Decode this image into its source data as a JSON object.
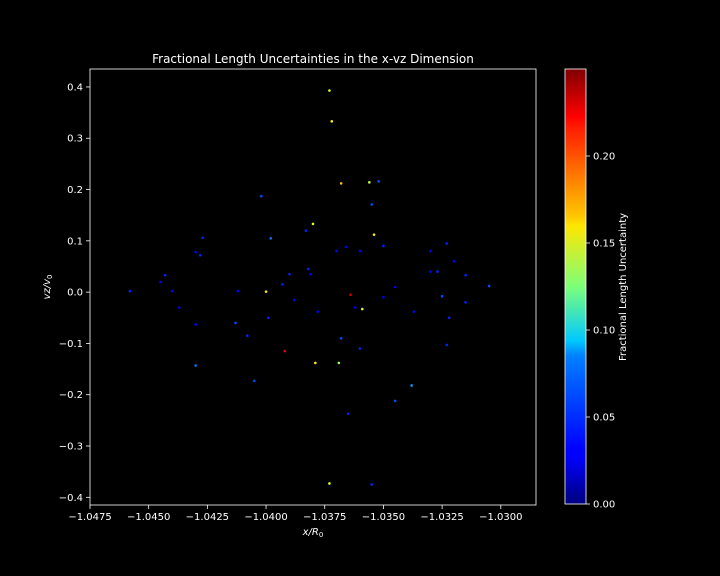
{
  "chart_data": {
    "type": "scatter",
    "title": "Fractional Length Uncertainties in the x-vz Dimension",
    "xlabel_main": "x/R",
    "xlabel_sub": "0",
    "ylabel_main": "vz/v",
    "ylabel_sub": "0",
    "xlim": [
      -1.0475,
      -1.0285
    ],
    "ylim": [
      -0.415,
      0.435
    ],
    "xticks": [
      -1.0475,
      -1.045,
      -1.0425,
      -1.04,
      -1.0375,
      -1.035,
      -1.0325,
      -1.03
    ],
    "xtick_labels": [
      "−1.0475",
      "−1.0450",
      "−1.0425",
      "−1.0400",
      "−1.0375",
      "−1.0350",
      "−1.0325",
      "−1.0300"
    ],
    "yticks": [
      0.4,
      0.3,
      0.2,
      0.1,
      0.0,
      -0.1,
      -0.2,
      -0.3,
      -0.4
    ],
    "ytick_labels": [
      "0.4",
      "0.3",
      "0.2",
      "0.1",
      "0.0",
      "−0.1",
      "−0.2",
      "−0.3",
      "−0.4"
    ],
    "grid": false,
    "background": "#000000",
    "colorbar": {
      "label": "Fractional Length Uncertainty",
      "colormap": "jet",
      "min": 0.0,
      "max": 0.25,
      "ticks": [
        0.0,
        0.05,
        0.1,
        0.15,
        0.2
      ],
      "tick_labels": [
        "0.00",
        "0.05",
        "0.10",
        "0.15",
        "0.20"
      ]
    },
    "points": [
      {
        "x": -1.0373,
        "y": 0.393,
        "c": 0.15
      },
      {
        "x": -1.0372,
        "y": 0.333,
        "c": 0.16
      },
      {
        "x": -1.0368,
        "y": 0.212,
        "c": 0.17
      },
      {
        "x": -1.0356,
        "y": 0.214,
        "c": 0.14
      },
      {
        "x": -1.0352,
        "y": 0.216,
        "c": 0.05
      },
      {
        "x": -1.0355,
        "y": 0.171,
        "c": 0.05
      },
      {
        "x": -1.038,
        "y": 0.133,
        "c": 0.15
      },
      {
        "x": -1.0354,
        "y": 0.112,
        "c": 0.16
      },
      {
        "x": -1.0402,
        "y": 0.187,
        "c": 0.05
      },
      {
        "x": -1.0398,
        "y": 0.105,
        "c": 0.06
      },
      {
        "x": -1.0383,
        "y": 0.12,
        "c": 0.04
      },
      {
        "x": -1.0427,
        "y": 0.106,
        "c": 0.04
      },
      {
        "x": -1.043,
        "y": 0.078,
        "c": 0.03
      },
      {
        "x": -1.0428,
        "y": 0.072,
        "c": 0.04
      },
      {
        "x": -1.0366,
        "y": 0.088,
        "c": 0.03
      },
      {
        "x": -1.036,
        "y": 0.08,
        "c": 0.03
      },
      {
        "x": -1.035,
        "y": 0.09,
        "c": 0.04
      },
      {
        "x": -1.037,
        "y": 0.08,
        "c": 0.03
      },
      {
        "x": -1.033,
        "y": 0.08,
        "c": 0.03
      },
      {
        "x": -1.0323,
        "y": 0.095,
        "c": 0.04
      },
      {
        "x": -1.032,
        "y": 0.06,
        "c": 0.03
      },
      {
        "x": -1.033,
        "y": 0.04,
        "c": 0.03
      },
      {
        "x": -1.0327,
        "y": 0.04,
        "c": 0.04
      },
      {
        "x": -1.0315,
        "y": 0.033,
        "c": 0.04
      },
      {
        "x": -1.0305,
        "y": 0.012,
        "c": 0.05
      },
      {
        "x": -1.0458,
        "y": 0.002,
        "c": 0.04
      },
      {
        "x": -1.0443,
        "y": 0.033,
        "c": 0.04
      },
      {
        "x": -1.0445,
        "y": 0.02,
        "c": 0.03
      },
      {
        "x": -1.044,
        "y": 0.002,
        "c": 0.03
      },
      {
        "x": -1.0437,
        "y": -0.03,
        "c": 0.03
      },
      {
        "x": -1.043,
        "y": -0.063,
        "c": 0.03
      },
      {
        "x": -1.043,
        "y": -0.143,
        "c": 0.06
      },
      {
        "x": -1.0412,
        "y": 0.002,
        "c": 0.03
      },
      {
        "x": -1.0413,
        "y": -0.06,
        "c": 0.05
      },
      {
        "x": -1.0408,
        "y": -0.085,
        "c": 0.04
      },
      {
        "x": -1.0405,
        "y": -0.173,
        "c": 0.05
      },
      {
        "x": -1.04,
        "y": 0.001,
        "c": 0.16
      },
      {
        "x": -1.0399,
        "y": -0.05,
        "c": 0.04
      },
      {
        "x": -1.0393,
        "y": 0.015,
        "c": 0.04
      },
      {
        "x": -1.039,
        "y": 0.035,
        "c": 0.04
      },
      {
        "x": -1.0388,
        "y": -0.015,
        "c": 0.03
      },
      {
        "x": -1.0382,
        "y": 0.045,
        "c": 0.04
      },
      {
        "x": -1.0381,
        "y": 0.035,
        "c": 0.03
      },
      {
        "x": -1.0378,
        "y": -0.038,
        "c": 0.03
      },
      {
        "x": -1.0392,
        "y": -0.115,
        "c": 0.22
      },
      {
        "x": -1.0379,
        "y": -0.138,
        "c": 0.16
      },
      {
        "x": -1.0368,
        "y": -0.09,
        "c": 0.05
      },
      {
        "x": -1.0369,
        "y": -0.138,
        "c": 0.13
      },
      {
        "x": -1.0364,
        "y": -0.005,
        "c": 0.23
      },
      {
        "x": -1.0362,
        "y": -0.03,
        "c": 0.03
      },
      {
        "x": -1.0359,
        "y": -0.033,
        "c": 0.15
      },
      {
        "x": -1.036,
        "y": -0.11,
        "c": 0.04
      },
      {
        "x": -1.035,
        "y": -0.01,
        "c": 0.03
      },
      {
        "x": -1.0345,
        "y": 0.01,
        "c": 0.03
      },
      {
        "x": -1.0337,
        "y": -0.038,
        "c": 0.03
      },
      {
        "x": -1.0325,
        "y": -0.008,
        "c": 0.05
      },
      {
        "x": -1.0322,
        "y": -0.05,
        "c": 0.04
      },
      {
        "x": -1.0323,
        "y": -0.103,
        "c": 0.04
      },
      {
        "x": -1.0315,
        "y": -0.02,
        "c": 0.04
      },
      {
        "x": -1.0338,
        "y": -0.182,
        "c": 0.07
      },
      {
        "x": -1.0345,
        "y": -0.212,
        "c": 0.05
      },
      {
        "x": -1.0365,
        "y": -0.237,
        "c": 0.04
      },
      {
        "x": -1.0373,
        "y": -0.373,
        "c": 0.15
      },
      {
        "x": -1.0355,
        "y": -0.375,
        "c": 0.04
      }
    ]
  }
}
